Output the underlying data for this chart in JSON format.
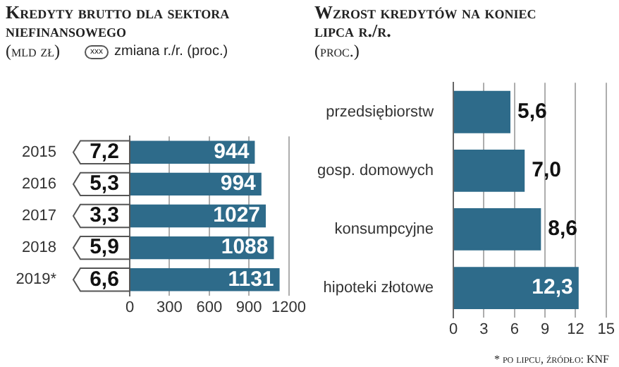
{
  "chart_data": [
    {
      "type": "bar",
      "orientation": "horizontal",
      "title": "Kredyty brutto dla sektora niefinansowego",
      "subtitle": "(mld zł)",
      "legend_title": "zmiana r./r. (proc.)",
      "categories": [
        "2015",
        "2016",
        "2017",
        "2018",
        "2019*"
      ],
      "values": [
        944,
        994,
        1027,
        1088,
        1131
      ],
      "color": "#2e6b8a",
      "xlim": [
        0,
        1200
      ],
      "xticks": [
        0,
        300,
        600,
        900,
        1200
      ],
      "grid": "x",
      "data_labels": true,
      "annotations": [
        "xxx",
        {
          "text": "7,2",
          "y": "2015"
        },
        {
          "text": "5,3",
          "y": "2016"
        },
        {
          "text": "3,3",
          "y": "2017"
        },
        {
          "text": "5,9",
          "y": "2018"
        },
        {
          "text": "6,6",
          "y": "2019*"
        }
      ]
    },
    {
      "type": "bar",
      "orientation": "horizontal",
      "title": "Wzrost kredytów na koniec lipca r./r.",
      "subtitle": "(proc.)",
      "categories": [
        "przedsiębiorstw",
        "gosp. domowych",
        "konsumpcyjne",
        "hipoteki złotowe"
      ],
      "values": [
        5.6,
        7.0,
        8.6,
        12.3
      ],
      "color": "#2e6b8a",
      "value_labels": [
        "5,6",
        "7,0",
        "8,6",
        "12,3"
      ],
      "xlim": [
        0,
        15
      ],
      "xticks": [
        0,
        3,
        6,
        9,
        12,
        15
      ],
      "grid": "x",
      "annotations": [
        "* po lipcu, źródło: KNF"
      ]
    }
  ]
}
